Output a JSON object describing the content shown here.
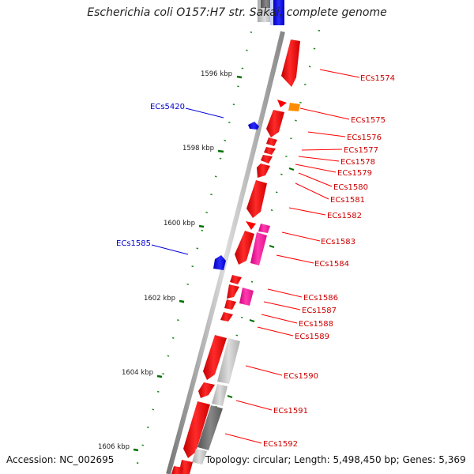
{
  "title": "Escherichia coli O157:H7 str. Sakai, complete genome",
  "accession": "Accession: NC_002695",
  "topology": "Topology: circular; Length: 5,498,450 bp; Genes: 5,369",
  "colors": {
    "red": "#ff0000",
    "magenta": "#ff1aa0",
    "orange": "#ff8c00",
    "blue": "#0000ee",
    "gray": "#bbbbbb",
    "darkgray": "#666666",
    "tick": "#007000"
  },
  "ticks": [
    {
      "label": "1596 kbp"
    },
    {
      "label": "1598 kbp"
    },
    {
      "label": "1600 kbp"
    },
    {
      "label": "1602 kbp"
    },
    {
      "label": "1604 kbp"
    },
    {
      "label": "1606 kbp"
    }
  ],
  "right_labels": [
    {
      "label": "ECs1574"
    },
    {
      "label": "ECs1575"
    },
    {
      "label": "ECs1576"
    },
    {
      "label": "ECs1577"
    },
    {
      "label": "ECs1578"
    },
    {
      "label": "ECs1579"
    },
    {
      "label": "ECs1580"
    },
    {
      "label": "ECs1581"
    },
    {
      "label": "ECs1582"
    },
    {
      "label": "ECs1583"
    },
    {
      "label": "ECs1584"
    },
    {
      "label": "ECs1586"
    },
    {
      "label": "ECs1587"
    },
    {
      "label": "ECs1588"
    },
    {
      "label": "ECs1589"
    },
    {
      "label": "ECs1590"
    },
    {
      "label": "ECs1591"
    },
    {
      "label": "ECs1592"
    }
  ],
  "left_labels": [
    {
      "label": "ECs5420"
    },
    {
      "label": "ECs1585"
    }
  ]
}
